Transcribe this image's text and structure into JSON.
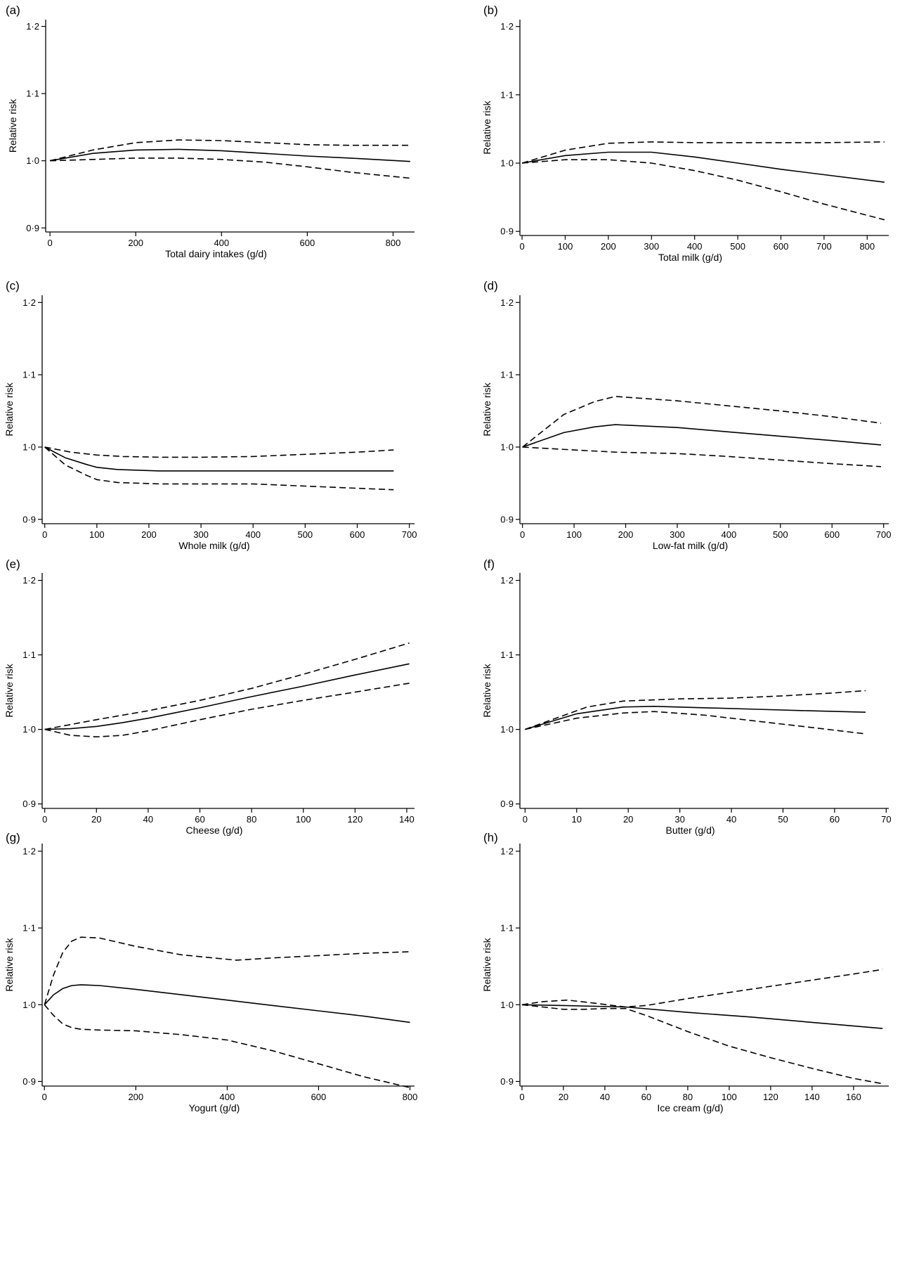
{
  "chart_data": [
    {
      "panel": "(a)",
      "type": "line",
      "xlabel": "Total dairy intakes (g/d)",
      "ylabel": "Relative risk",
      "xlim": [
        -10,
        850
      ],
      "ylim": [
        0.894,
        1.21
      ],
      "xticks": [
        0,
        200,
        400,
        600,
        800
      ],
      "xtick_labels": [
        "0",
        "200",
        "400",
        "600",
        "800"
      ],
      "yticks": [
        0.9,
        1.0,
        1.1,
        1.2
      ],
      "ytick_labels": [
        "0·9",
        "1·0",
        "1·1",
        "1·2"
      ],
      "series": [
        {
          "style": "solid",
          "x": [
            0,
            100,
            200,
            300,
            400,
            500,
            600,
            700,
            840
          ],
          "y": [
            1.0,
            1.011,
            1.016,
            1.017,
            1.015,
            1.011,
            1.007,
            1.004,
            0.999
          ]
        },
        {
          "style": "dashed",
          "x": [
            0,
            100,
            200,
            300,
            400,
            500,
            600,
            700,
            840
          ],
          "y": [
            1.0,
            1.016,
            1.027,
            1.031,
            1.03,
            1.027,
            1.024,
            1.023,
            1.023
          ]
        },
        {
          "style": "dashed",
          "x": [
            0,
            100,
            200,
            300,
            400,
            500,
            600,
            700,
            840
          ],
          "y": [
            1.0,
            1.002,
            1.004,
            1.004,
            1.002,
            0.998,
            0.991,
            0.983,
            0.974
          ]
        }
      ]
    },
    {
      "panel": "(b)",
      "type": "line",
      "xlabel": "Total milk (g/d)",
      "ylabel": "Relative risk",
      "xlim": [
        -5,
        850
      ],
      "ylim": [
        0.894,
        1.21
      ],
      "xticks": [
        0,
        100,
        200,
        300,
        400,
        500,
        600,
        700,
        800
      ],
      "xtick_labels": [
        "0",
        "100",
        "200",
        "300",
        "400",
        "500",
        "600",
        "700",
        "800"
      ],
      "yticks": [
        0.9,
        1.0,
        1.1,
        1.2
      ],
      "ytick_labels": [
        "0·9",
        "1·0",
        "1·1",
        "1·2"
      ],
      "series": [
        {
          "style": "solid",
          "x": [
            0,
            100,
            200,
            300,
            400,
            500,
            600,
            700,
            840
          ],
          "y": [
            1.0,
            1.011,
            1.016,
            1.016,
            1.009,
            1.0,
            0.991,
            0.983,
            0.972
          ]
        },
        {
          "style": "dashed",
          "x": [
            0,
            100,
            200,
            300,
            400,
            500,
            600,
            700,
            840
          ],
          "y": [
            1.0,
            1.019,
            1.029,
            1.031,
            1.03,
            1.03,
            1.03,
            1.03,
            1.031
          ]
        },
        {
          "style": "dashed",
          "x": [
            0,
            100,
            200,
            300,
            400,
            500,
            600,
            700,
            840
          ],
          "y": [
            1.0,
            1.005,
            1.005,
            1.0,
            0.989,
            0.975,
            0.958,
            0.94,
            0.917
          ]
        }
      ]
    },
    {
      "panel": "(c)",
      "type": "line",
      "xlabel": "Whole milk (g/d)",
      "ylabel": "Relative risk",
      "xlim": [
        -5,
        710
      ],
      "ylim": [
        0.894,
        1.21
      ],
      "xticks": [
        0,
        100,
        200,
        300,
        400,
        500,
        600,
        700
      ],
      "xtick_labels": [
        "0",
        "100",
        "200",
        "300",
        "400",
        "500",
        "600",
        "700"
      ],
      "yticks": [
        0.9,
        1.0,
        1.1,
        1.2
      ],
      "ytick_labels": [
        "0·9",
        "1·0",
        "1·1",
        "1·2"
      ],
      "series": [
        {
          "style": "solid",
          "x": [
            0,
            40,
            80,
            100,
            140,
            220,
            300,
            400,
            500,
            600,
            670
          ],
          "y": [
            1.0,
            0.985,
            0.976,
            0.972,
            0.969,
            0.967,
            0.967,
            0.967,
            0.967,
            0.967,
            0.967
          ]
        },
        {
          "style": "dashed",
          "x": [
            0,
            50,
            100,
            150,
            220,
            300,
            400,
            500,
            600,
            670
          ],
          "y": [
            1.0,
            0.993,
            0.989,
            0.987,
            0.986,
            0.986,
            0.987,
            0.99,
            0.993,
            0.996
          ]
        },
        {
          "style": "dashed",
          "x": [
            0,
            40,
            80,
            100,
            140,
            220,
            300,
            400,
            500,
            600,
            670
          ],
          "y": [
            1.0,
            0.975,
            0.961,
            0.955,
            0.951,
            0.949,
            0.949,
            0.949,
            0.946,
            0.943,
            0.941
          ]
        }
      ]
    },
    {
      "panel": "(d)",
      "type": "line",
      "xlabel": "Low-fat milk (g/d)",
      "ylabel": "Relative risk",
      "xlim": [
        -5,
        710
      ],
      "ylim": [
        0.894,
        1.21
      ],
      "xticks": [
        0,
        100,
        200,
        300,
        400,
        500,
        600,
        700
      ],
      "xtick_labels": [
        "0",
        "100",
        "200",
        "300",
        "400",
        "500",
        "600",
        "700"
      ],
      "yticks": [
        0.9,
        1.0,
        1.1,
        1.2
      ],
      "ytick_labels": [
        "0·9",
        "1·0",
        "1·1",
        "1·2"
      ],
      "series": [
        {
          "style": "solid",
          "x": [
            0,
            80,
            140,
            180,
            300,
            400,
            500,
            600,
            695
          ],
          "y": [
            1.0,
            1.02,
            1.028,
            1.031,
            1.027,
            1.021,
            1.015,
            1.009,
            1.003
          ]
        },
        {
          "style": "dashed",
          "x": [
            0,
            80,
            140,
            180,
            300,
            400,
            500,
            600,
            695
          ],
          "y": [
            1.0,
            1.045,
            1.063,
            1.07,
            1.064,
            1.057,
            1.05,
            1.042,
            1.033
          ]
        },
        {
          "style": "dashed",
          "x": [
            0,
            100,
            180,
            300,
            400,
            500,
            600,
            695
          ],
          "y": [
            1.0,
            0.996,
            0.993,
            0.991,
            0.987,
            0.982,
            0.977,
            0.973
          ]
        }
      ]
    },
    {
      "panel": "(e)",
      "type": "line",
      "xlabel": "Cheese (g/d)",
      "ylabel": "Relative risk",
      "xlim": [
        -1,
        143
      ],
      "ylim": [
        0.894,
        1.21
      ],
      "xticks": [
        0,
        20,
        40,
        60,
        80,
        100,
        120,
        140
      ],
      "xtick_labels": [
        "0",
        "20",
        "40",
        "60",
        "80",
        "100",
        "120",
        "140"
      ],
      "yticks": [
        0.9,
        1.0,
        1.1,
        1.2
      ],
      "ytick_labels": [
        "0·9",
        "1·0",
        "1·1",
        "1·2"
      ],
      "series": [
        {
          "style": "solid",
          "x": [
            0,
            10,
            20,
            30,
            40,
            50,
            60,
            80,
            100,
            120,
            141
          ],
          "y": [
            1.0,
            1.001,
            1.004,
            1.009,
            1.015,
            1.022,
            1.029,
            1.044,
            1.058,
            1.073,
            1.088
          ]
        },
        {
          "style": "dashed",
          "x": [
            0,
            20,
            40,
            60,
            80,
            100,
            120,
            141
          ],
          "y": [
            1.0,
            1.013,
            1.025,
            1.039,
            1.055,
            1.074,
            1.094,
            1.116
          ]
        },
        {
          "style": "dashed",
          "x": [
            0,
            10,
            20,
            30,
            40,
            60,
            80,
            100,
            120,
            141
          ],
          "y": [
            1.0,
            0.992,
            0.99,
            0.992,
            0.998,
            1.013,
            1.027,
            1.039,
            1.05,
            1.062
          ]
        }
      ]
    },
    {
      "panel": "(f)",
      "type": "line",
      "xlabel": "Butter (g/d)",
      "ylabel": "Relative risk",
      "xlim": [
        -1,
        70.5
      ],
      "ylim": [
        0.894,
        1.21
      ],
      "xticks": [
        0,
        10,
        20,
        30,
        40,
        50,
        60,
        70
      ],
      "xtick_labels": [
        "0",
        "10",
        "20",
        "30",
        "40",
        "50",
        "60",
        "70"
      ],
      "yticks": [
        0.9,
        1.0,
        1.1,
        1.2
      ],
      "ytick_labels": [
        "0·9",
        "1·0",
        "1·1",
        "1·2"
      ],
      "series": [
        {
          "style": "solid",
          "x": [
            0,
            10,
            19,
            25,
            35,
            45,
            55,
            66
          ],
          "y": [
            1.0,
            1.021,
            1.03,
            1.031,
            1.029,
            1.027,
            1.025,
            1.023
          ]
        },
        {
          "style": "dashed",
          "x": [
            0,
            12,
            19,
            30,
            40,
            50,
            60,
            66
          ],
          "y": [
            1.0,
            1.03,
            1.038,
            1.041,
            1.042,
            1.045,
            1.049,
            1.052
          ]
        },
        {
          "style": "dashed",
          "x": [
            0,
            10,
            19,
            25,
            35,
            45,
            55,
            66
          ],
          "y": [
            1.0,
            1.015,
            1.022,
            1.024,
            1.019,
            1.011,
            1.003,
            0.994
          ]
        }
      ]
    },
    {
      "panel": "(g)",
      "type": "line",
      "xlabel": "Yogurt (g/d)",
      "ylabel": "Relative risk",
      "xlim": [
        -5,
        810
      ],
      "ylim": [
        0.894,
        1.21
      ],
      "xticks": [
        0,
        200,
        400,
        600,
        800
      ],
      "xtick_labels": [
        "0",
        "200",
        "400",
        "600",
        "800"
      ],
      "yticks": [
        0.9,
        1.0,
        1.1,
        1.2
      ],
      "ytick_labels": [
        "0·9",
        "1·0",
        "1·1",
        "1·2"
      ],
      "series": [
        {
          "style": "solid",
          "x": [
            0,
            20,
            40,
            60,
            80,
            120,
            200,
            300,
            400,
            500,
            600,
            700,
            800
          ],
          "y": [
            1.0,
            1.013,
            1.021,
            1.025,
            1.026,
            1.025,
            1.02,
            1.013,
            1.006,
            0.999,
            0.992,
            0.985,
            0.977
          ]
        },
        {
          "style": "dashed",
          "x": [
            0,
            20,
            40,
            60,
            80,
            120,
            200,
            300,
            420,
            500,
            600,
            700,
            800
          ],
          "y": [
            1.0,
            1.039,
            1.068,
            1.083,
            1.088,
            1.087,
            1.076,
            1.065,
            1.058,
            1.061,
            1.064,
            1.067,
            1.069
          ]
        },
        {
          "style": "dashed",
          "x": [
            0,
            20,
            40,
            60,
            80,
            120,
            200,
            300,
            400,
            500,
            600,
            700,
            800
          ],
          "y": [
            1.0,
            0.986,
            0.975,
            0.97,
            0.968,
            0.967,
            0.966,
            0.961,
            0.954,
            0.94,
            0.923,
            0.906,
            0.892
          ]
        }
      ]
    },
    {
      "panel": "(h)",
      "type": "line",
      "xlabel": "Ice cream (g/d)",
      "ylabel": "Relative risk",
      "xlim": [
        -1,
        177
      ],
      "ylim": [
        0.894,
        1.21
      ],
      "xticks": [
        0,
        20,
        40,
        60,
        80,
        100,
        120,
        140,
        160
      ],
      "xtick_labels": [
        "0",
        "20",
        "40",
        "60",
        "80",
        "100",
        "120",
        "140",
        "160"
      ],
      "yticks": [
        0.9,
        1.0,
        1.1,
        1.2
      ],
      "ytick_labels": [
        "0·9",
        "1·0",
        "1·1",
        "1·2"
      ],
      "series": [
        {
          "style": "solid",
          "x": [
            0,
            20,
            50,
            80,
            110,
            140,
            174
          ],
          "y": [
            1.0,
            0.999,
            0.997,
            0.99,
            0.984,
            0.977,
            0.969
          ]
        },
        {
          "style": "dashed",
          "x": [
            0,
            10,
            22,
            35,
            50,
            60,
            80,
            100,
            120,
            140,
            160,
            174
          ],
          "y": [
            1.0,
            1.004,
            1.006,
            1.002,
            0.997,
            0.999,
            1.008,
            1.016,
            1.024,
            1.032,
            1.04,
            1.046
          ]
        },
        {
          "style": "dashed",
          "x": [
            0,
            10,
            20,
            30,
            40,
            50,
            60,
            80,
            100,
            120,
            140,
            160,
            174
          ],
          "y": [
            1.0,
            0.997,
            0.994,
            0.994,
            0.995,
            0.995,
            0.986,
            0.965,
            0.946,
            0.931,
            0.917,
            0.904,
            0.897
          ]
        }
      ]
    }
  ]
}
